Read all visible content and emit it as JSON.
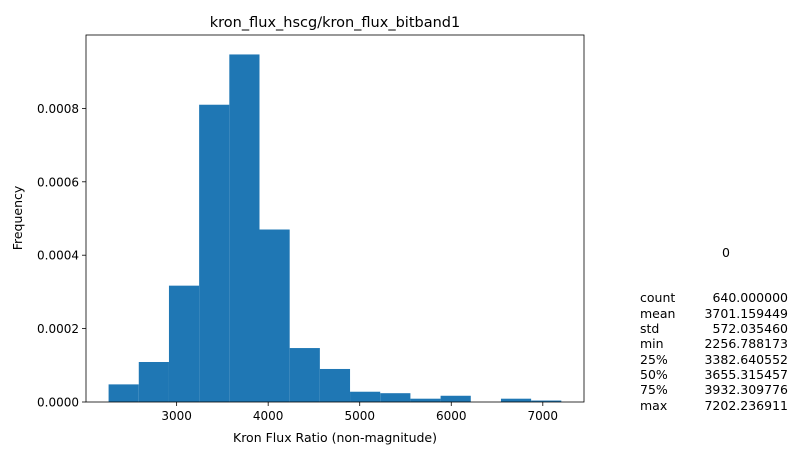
{
  "chart_data": {
    "type": "histogram",
    "title": "kron_flux_hscg/kron_flux_bitband1",
    "xlabel": "Kron Flux Ratio (non-magnitude)",
    "ylabel": "Frequency",
    "xlim": [
      2010,
      7450
    ],
    "ylim": [
      0,
      0.001
    ],
    "x_ticks": [
      3000,
      4000,
      5000,
      6000,
      7000
    ],
    "x_tick_labels": [
      "3000",
      "4000",
      "5000",
      "6000",
      "7000"
    ],
    "y_ticks": [
      0.0,
      0.0002,
      0.0004,
      0.0006,
      0.0008
    ],
    "y_tick_labels": [
      "0.0000",
      "0.0002",
      "0.0004",
      "0.0006",
      "0.0008"
    ],
    "bar_color": "#1f77b4",
    "bins": [
      {
        "x0": 2256.79,
        "x1": 2586.48,
        "density": 4.8e-05
      },
      {
        "x0": 2586.48,
        "x1": 2916.18,
        "density": 0.000109
      },
      {
        "x0": 2916.18,
        "x1": 3245.87,
        "density": 0.000317
      },
      {
        "x0": 3245.87,
        "x1": 3575.56,
        "density": 0.00081
      },
      {
        "x0": 3575.56,
        "x1": 3905.26,
        "density": 0.000947
      },
      {
        "x0": 3905.26,
        "x1": 4234.95,
        "density": 0.00047
      },
      {
        "x0": 4234.95,
        "x1": 4564.65,
        "density": 0.000147
      },
      {
        "x0": 4564.65,
        "x1": 4894.34,
        "density": 9e-05
      },
      {
        "x0": 4894.34,
        "x1": 5224.03,
        "density": 2.8e-05
      },
      {
        "x0": 5224.03,
        "x1": 5553.73,
        "density": 2.4e-05
      },
      {
        "x0": 5553.73,
        "x1": 5883.42,
        "density": 9e-06
      },
      {
        "x0": 5883.42,
        "x1": 6213.11,
        "density": 1.7e-05
      },
      {
        "x0": 6213.11,
        "x1": 6542.81,
        "density": 0.0
      },
      {
        "x0": 6542.81,
        "x1": 6872.5,
        "density": 9e-06
      },
      {
        "x0": 6872.5,
        "x1": 7202.24,
        "density": 4e-06
      }
    ]
  },
  "stats_table": {
    "column_header": "0",
    "rows": [
      {
        "key": "count",
        "value": "640.000000"
      },
      {
        "key": "mean",
        "value": "3701.159449"
      },
      {
        "key": "std",
        "value": "572.035460"
      },
      {
        "key": "min",
        "value": "2256.788173"
      },
      {
        "key": "25%",
        "value": "3382.640552"
      },
      {
        "key": "50%",
        "value": "3655.315457"
      },
      {
        "key": "75%",
        "value": "3932.309776"
      },
      {
        "key": "max",
        "value": "7202.236911"
      }
    ]
  }
}
